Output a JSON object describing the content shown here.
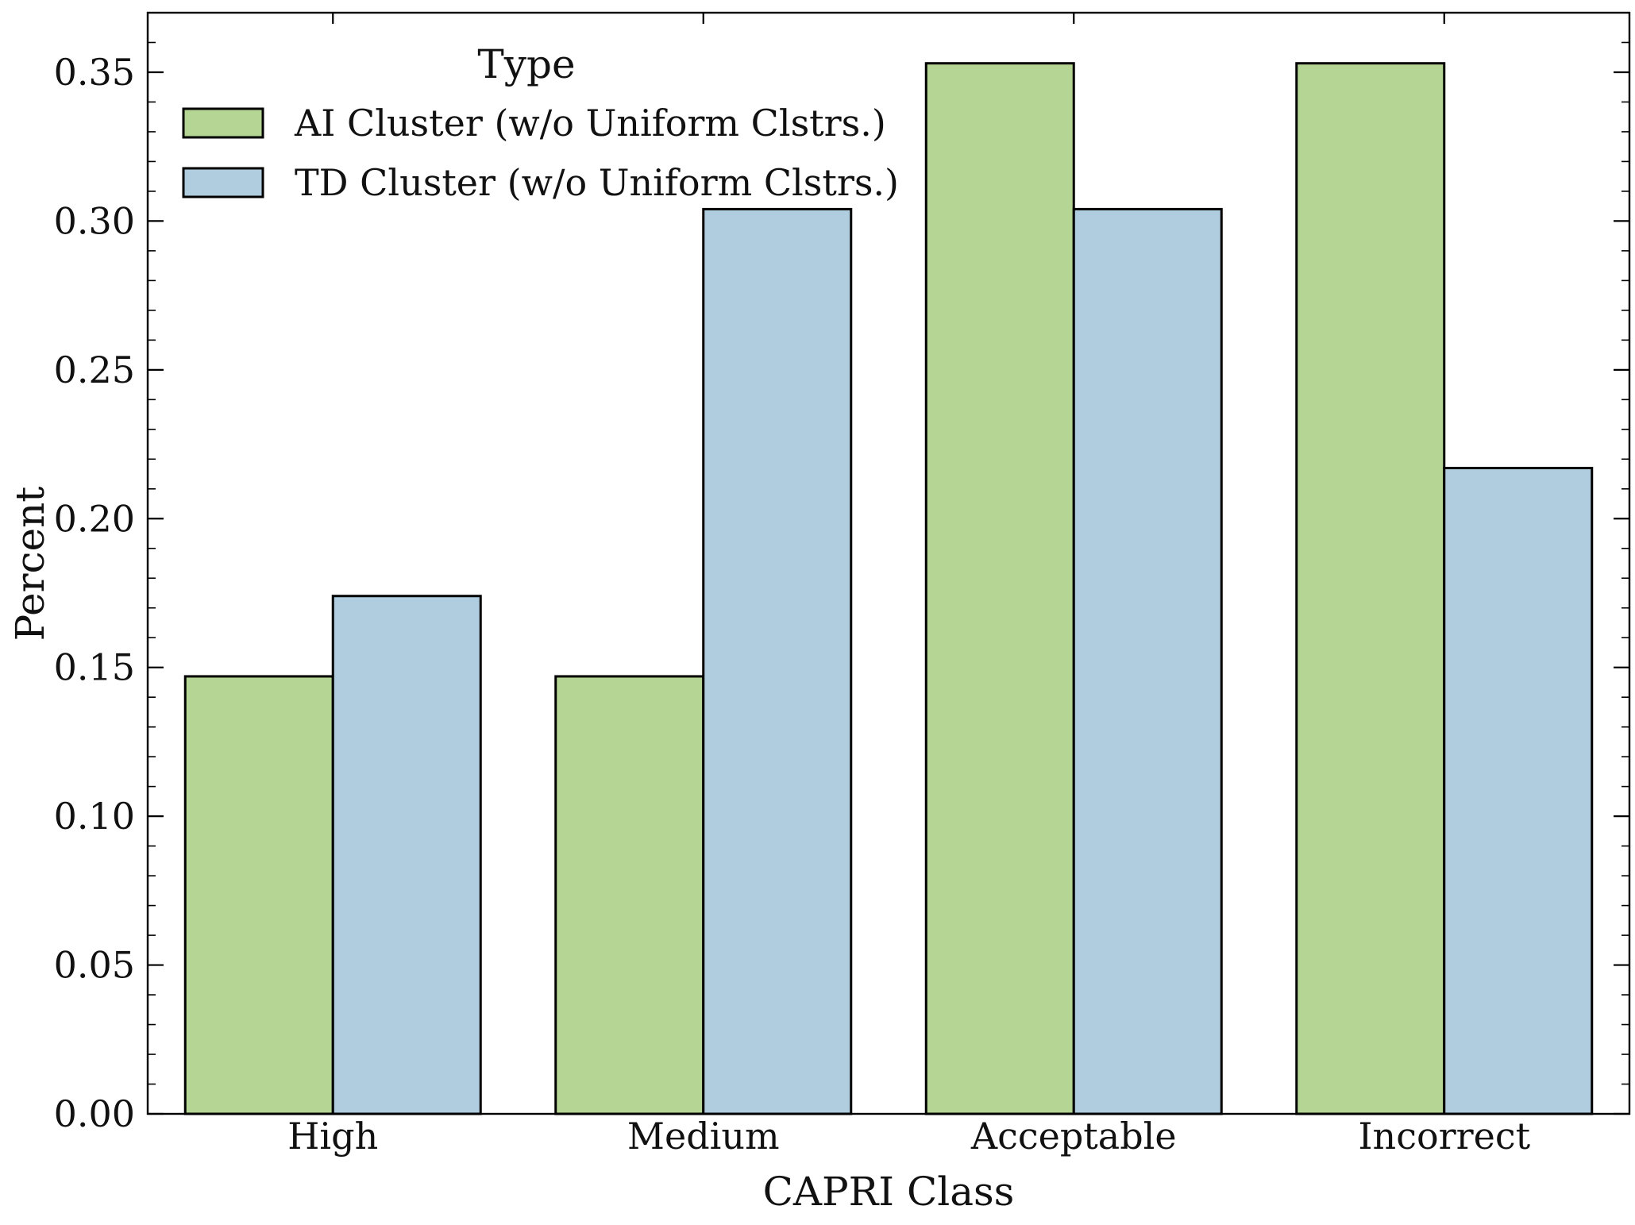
{
  "chart_data": {
    "type": "bar",
    "xlabel": "CAPRI Class",
    "ylabel": "Percent",
    "categories": [
      "High",
      "Medium",
      "Acceptable",
      "Incorrect"
    ],
    "ylim": [
      0,
      0.37
    ],
    "yticks": [
      "0.00",
      "0.05",
      "0.10",
      "0.15",
      "0.20",
      "0.25",
      "0.30",
      "0.35"
    ],
    "legend": {
      "title": "Type",
      "placement": "upper-left"
    },
    "grid": false,
    "series": [
      {
        "name": "AI Cluster (w/o Uniform Clstrs.)",
        "color": "#b5d595",
        "values": [
          0.147,
          0.147,
          0.353,
          0.353
        ]
      },
      {
        "name": "TD Cluster (w/o Uniform Clstrs.)",
        "color": "#b0cddf",
        "values": [
          0.174,
          0.304,
          0.304,
          0.217
        ]
      }
    ]
  }
}
